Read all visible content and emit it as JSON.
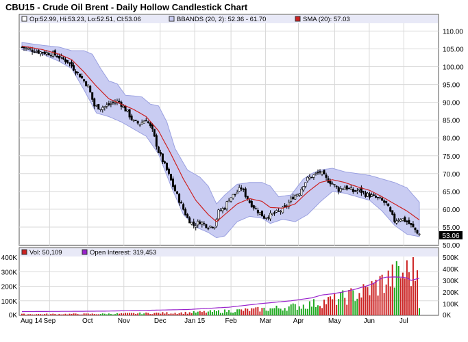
{
  "title": "CBU15 - Crude Oil Brent - Daily Hollow Candlestick Chart",
  "legend_top": {
    "ohlc": "Op:52.99, Hi:53.23, Lo:52.51, Cl:53.06",
    "bbands": "BBANDS (20, 2): 52.36 - 61.70",
    "sma": "SMA (20): 57.03"
  },
  "legend_bottom": {
    "vol": "Vol: 50,109",
    "oi": "Open Interest: 319,453"
  },
  "last_price_label": "53.06",
  "colors": {
    "sma": "#cc2222",
    "band_fill": "#c9ccf2",
    "band_line": "#9aa0e0",
    "oi": "#9922cc",
    "vol_up": "#22aa22",
    "vol_down": "#cc2222",
    "panel_bg": "#ffffff",
    "legend_bg": "#e8e9f7",
    "grid": "#d8d8d8"
  },
  "chart_data": {
    "type": "candlestick",
    "x_ticks": [
      "Aug 14",
      "Sep",
      "Oct",
      "Nov",
      "Dec",
      "Jan 15",
      "Feb",
      "Mar",
      "Apr",
      "May",
      "Jun",
      "Jul"
    ],
    "price_axis": {
      "ticks": [
        "110.00",
        "105.00",
        "100.00",
        "95.00",
        "90.00",
        "85.00",
        "80.00",
        "75.00",
        "70.00",
        "65.00",
        "60.00",
        "55.00",
        "50.00"
      ],
      "range": [
        50,
        112
      ]
    },
    "volume_axis": {
      "left_ticks": [
        "400K",
        "300K",
        "200K",
        "100K",
        "0K"
      ],
      "right_ticks": [
        "500K",
        "400K",
        "300K",
        "200K",
        "100K",
        "0K"
      ],
      "left_range": [
        0,
        400000
      ],
      "right_range": [
        0,
        500000
      ]
    },
    "close_path": [
      [
        0,
        105.5
      ],
      [
        8,
        104.2
      ],
      [
        15,
        103.6
      ],
      [
        22,
        101.5
      ],
      [
        28,
        97.5
      ],
      [
        32,
        94.5
      ],
      [
        35,
        89.0
      ],
      [
        38,
        88.5
      ],
      [
        41,
        89.0
      ],
      [
        44,
        90.0
      ],
      [
        47,
        90.2
      ],
      [
        51,
        87.2
      ],
      [
        54,
        84.5
      ],
      [
        57,
        84.0
      ],
      [
        60,
        85.3
      ],
      [
        63,
        82.0
      ],
      [
        66,
        76.2
      ],
      [
        70,
        71.0
      ],
      [
        73,
        66.5
      ],
      [
        76,
        62.5
      ],
      [
        80,
        57.5
      ],
      [
        83,
        55.5
      ],
      [
        86,
        56.5
      ],
      [
        90,
        55.2
      ],
      [
        93,
        55.5
      ],
      [
        95,
        59.3
      ],
      [
        98,
        60.5
      ],
      [
        100,
        63.0
      ],
      [
        103,
        64.3
      ],
      [
        106,
        66.0
      ],
      [
        110,
        62.0
      ],
      [
        113,
        60.0
      ],
      [
        117,
        57.8
      ],
      [
        120,
        58.3
      ],
      [
        124,
        59.3
      ],
      [
        127,
        60.3
      ],
      [
        131,
        63.5
      ],
      [
        134,
        64.8
      ],
      [
        136,
        67.0
      ],
      [
        138,
        68.5
      ],
      [
        141,
        69.5
      ],
      [
        144,
        70.5
      ],
      [
        147,
        68.5
      ],
      [
        150,
        67.2
      ],
      [
        153,
        65.5
      ],
      [
        156,
        66.3
      ],
      [
        160,
        65.0
      ],
      [
        163,
        65.3
      ],
      [
        166,
        64.2
      ],
      [
        170,
        63.5
      ],
      [
        173,
        62.7
      ],
      [
        176,
        61.5
      ],
      [
        178,
        59.0
      ],
      [
        180,
        56.8
      ],
      [
        183,
        57.5
      ],
      [
        186,
        56.5
      ],
      [
        189,
        54.8
      ],
      [
        192,
        53.06
      ]
    ],
    "sma_path": [
      [
        0,
        105.8
      ],
      [
        10,
        104.8
      ],
      [
        18,
        103.5
      ],
      [
        24,
        102.0
      ],
      [
        30,
        98.5
      ],
      [
        36,
        94.5
      ],
      [
        42,
        91.0
      ],
      [
        48,
        89.5
      ],
      [
        54,
        88.0
      ],
      [
        60,
        86.0
      ],
      [
        66,
        82.0
      ],
      [
        72,
        75.5
      ],
      [
        78,
        68.5
      ],
      [
        84,
        62.5
      ],
      [
        90,
        58.5
      ],
      [
        94,
        56.5
      ],
      [
        98,
        58.5
      ],
      [
        104,
        61.5
      ],
      [
        110,
        63.0
      ],
      [
        116,
        62.2
      ],
      [
        120,
        60.5
      ],
      [
        126,
        60.3
      ],
      [
        132,
        61.5
      ],
      [
        138,
        64.8
      ],
      [
        144,
        67.5
      ],
      [
        150,
        68.3
      ],
      [
        156,
        67.5
      ],
      [
        162,
        66.3
      ],
      [
        168,
        65.3
      ],
      [
        174,
        63.5
      ],
      [
        180,
        61.5
      ],
      [
        186,
        59.5
      ],
      [
        192,
        57.0
      ]
    ],
    "band_upper": [
      [
        0,
        106.8
      ],
      [
        10,
        106.0
      ],
      [
        18,
        105.5
      ],
      [
        24,
        104.5
      ],
      [
        30,
        104.5
      ],
      [
        34,
        103.5
      ],
      [
        38,
        99.5
      ],
      [
        42,
        96.0
      ],
      [
        46,
        95.2
      ],
      [
        50,
        92.0
      ],
      [
        54,
        91.8
      ],
      [
        58,
        91.5
      ],
      [
        62,
        89.5
      ],
      [
        66,
        89.0
      ],
      [
        70,
        84.5
      ],
      [
        74,
        77.0
      ],
      [
        80,
        71.0
      ],
      [
        86,
        69.0
      ],
      [
        90,
        66.5
      ],
      [
        94,
        61.5
      ],
      [
        98,
        64.0
      ],
      [
        104,
        67.0
      ],
      [
        110,
        67.5
      ],
      [
        116,
        67.5
      ],
      [
        120,
        66.5
      ],
      [
        124,
        63.5
      ],
      [
        130,
        64.0
      ],
      [
        136,
        68.5
      ],
      [
        140,
        70.0
      ],
      [
        144,
        71.0
      ],
      [
        150,
        71.5
      ],
      [
        156,
        70.5
      ],
      [
        162,
        70.0
      ],
      [
        168,
        69.5
      ],
      [
        174,
        68.5
      ],
      [
        180,
        67.5
      ],
      [
        186,
        66.0
      ],
      [
        192,
        62.0
      ]
    ],
    "band_lower": [
      [
        0,
        104.8
      ],
      [
        10,
        103.5
      ],
      [
        18,
        101.5
      ],
      [
        24,
        99.5
      ],
      [
        30,
        93.5
      ],
      [
        36,
        87.0
      ],
      [
        42,
        86.0
      ],
      [
        48,
        84.5
      ],
      [
        54,
        82.5
      ],
      [
        60,
        80.5
      ],
      [
        66,
        75.5
      ],
      [
        72,
        66.5
      ],
      [
        78,
        58.5
      ],
      [
        84,
        55.0
      ],
      [
        90,
        53.5
      ],
      [
        94,
        52.0
      ],
      [
        98,
        52.5
      ],
      [
        104,
        56.5
      ],
      [
        110,
        58.0
      ],
      [
        116,
        57.5
      ],
      [
        120,
        56.0
      ],
      [
        126,
        57.2
      ],
      [
        132,
        56.5
      ],
      [
        138,
        58.5
      ],
      [
        144,
        62.0
      ],
      [
        150,
        65.0
      ],
      [
        156,
        64.5
      ],
      [
        162,
        63.5
      ],
      [
        168,
        62.5
      ],
      [
        174,
        59.5
      ],
      [
        180,
        55.5
      ],
      [
        186,
        53.0
      ],
      [
        192,
        52.3
      ]
    ],
    "open_interest": [
      [
        0,
        32000
      ],
      [
        40,
        36000
      ],
      [
        80,
        50000
      ],
      [
        100,
        70000
      ],
      [
        115,
        100000
      ],
      [
        130,
        125000
      ],
      [
        140,
        150000
      ],
      [
        145,
        175000
      ],
      [
        150,
        185000
      ],
      [
        155,
        200000
      ],
      [
        160,
        220000
      ],
      [
        164,
        240000
      ],
      [
        167,
        255000
      ],
      [
        170,
        275000
      ],
      [
        172,
        300000
      ],
      [
        174,
        320000
      ],
      [
        176,
        328000
      ],
      [
        180,
        330000
      ],
      [
        184,
        328000
      ],
      [
        186,
        322000
      ],
      [
        188,
        300000
      ],
      [
        190,
        310000
      ],
      [
        192,
        319453
      ]
    ],
    "volume_envelope": [
      [
        0,
        8000
      ],
      [
        40,
        10000
      ],
      [
        80,
        18000
      ],
      [
        100,
        30000
      ],
      [
        120,
        45000
      ],
      [
        135,
        65000
      ],
      [
        145,
        90000
      ],
      [
        155,
        120000
      ],
      [
        165,
        160000
      ],
      [
        172,
        210000
      ],
      [
        178,
        250000
      ],
      [
        183,
        280000
      ],
      [
        188,
        300000
      ],
      [
        192,
        320000
      ]
    ],
    "last": {
      "open": 52.99,
      "high": 53.23,
      "low": 52.51,
      "close": 53.06,
      "volume": 50109,
      "open_interest": 319453
    }
  }
}
